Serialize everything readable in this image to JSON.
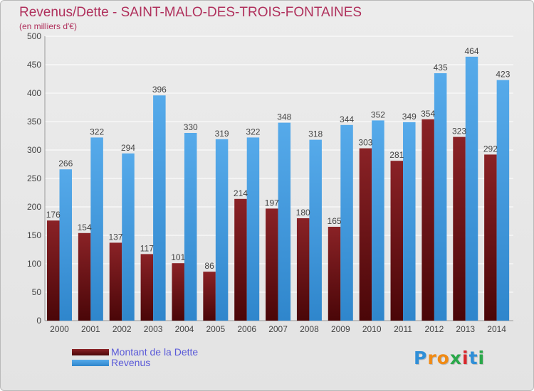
{
  "chart_data": {
    "type": "bar",
    "title": "Revenus/Dette - SAINT-MALO-DES-TROIS-FONTAINES",
    "subtitle": "(en milliers d'€)",
    "categories": [
      "2000",
      "2001",
      "2002",
      "2003",
      "2004",
      "2005",
      "2006",
      "2007",
      "2008",
      "2009",
      "2010",
      "2011",
      "2012",
      "2013",
      "2014"
    ],
    "series": [
      {
        "name": "Montant de la Dette",
        "color": "#7a1a1c",
        "values": [
          176,
          154,
          137,
          117,
          101,
          86,
          214,
          197,
          180,
          165,
          303,
          281,
          354,
          323,
          292
        ]
      },
      {
        "name": "Revenus",
        "color": "#4aa3e4",
        "values": [
          266,
          322,
          294,
          396,
          330,
          319,
          322,
          348,
          318,
          344,
          352,
          349,
          435,
          464,
          423
        ]
      }
    ],
    "ylim": [
      0,
      500
    ],
    "yticks": [
      0,
      50,
      100,
      150,
      200,
      250,
      300,
      350,
      400,
      450,
      500
    ],
    "grid": true,
    "legend_position": "bottom-left"
  },
  "logo": {
    "letters": [
      "P",
      "r",
      "o",
      "x",
      "i",
      "t",
      "i"
    ],
    "colors": [
      "#2f8fd8",
      "#f08a14",
      "#f08a14",
      "#2aa84a",
      "#d8262b",
      "#2f8fd8",
      "#2aa84a"
    ]
  }
}
